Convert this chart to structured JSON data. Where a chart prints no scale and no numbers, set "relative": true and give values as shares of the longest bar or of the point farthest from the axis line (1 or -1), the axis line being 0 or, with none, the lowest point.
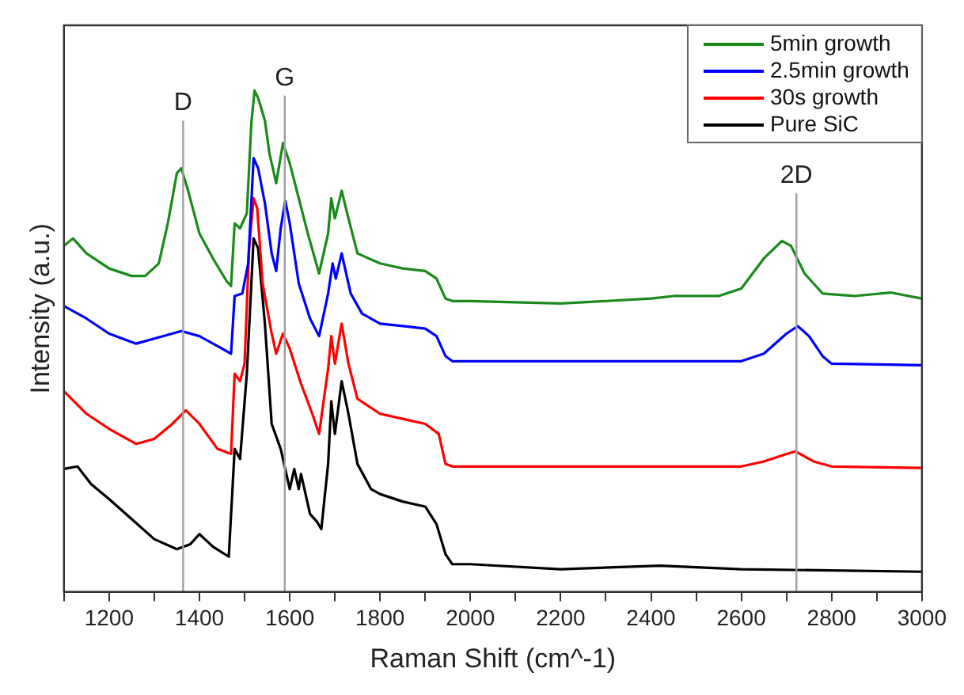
{
  "chart_data": {
    "type": "line",
    "xlabel": "Raman Shift (cm^-1)",
    "ylabel": "Intensity (a.u.)",
    "relative": true,
    "xlim": [
      1100,
      3000
    ],
    "xticks": [
      {
        "value": 1100,
        "label": null
      },
      1200,
      {
        "value": 1300,
        "label": null
      },
      1400,
      {
        "value": 1500,
        "label": null
      },
      1600,
      {
        "value": 1700,
        "label": null
      },
      1800,
      {
        "value": 1900,
        "label": null
      },
      2000,
      {
        "value": 2100,
        "label": null
      },
      2200,
      {
        "value": 2300,
        "label": null
      },
      2400,
      {
        "value": 2500,
        "label": null
      },
      2600,
      {
        "value": 2700,
        "label": null
      },
      2800,
      {
        "value": 2900,
        "label": null
      },
      3000
    ],
    "grid": false,
    "legend": "top right",
    "marker": "none",
    "line_style": "solid",
    "ref_lines": [
      {
        "axis": "x",
        "value": 1364,
        "label": "D",
        "color": "#a0a0a0"
      },
      {
        "axis": "x",
        "value": 1589,
        "label": "G",
        "color": "#a0a0a0"
      },
      {
        "axis": "x",
        "value": 2722,
        "label": "2D",
        "color": "#a0a0a0"
      }
    ],
    "series": [
      {
        "name": "5min growth",
        "color": "#1a8a1a",
        "x": [
          1100,
          1120,
          1150,
          1200,
          1250,
          1280,
          1310,
          1330,
          1350,
          1360,
          1375,
          1400,
          1430,
          1460,
          1470,
          1478,
          1490,
          1505,
          1515,
          1522,
          1530,
          1545,
          1555,
          1570,
          1585,
          1600,
          1620,
          1640,
          1665,
          1685,
          1692,
          1700,
          1715,
          1730,
          1750,
          1800,
          1850,
          1900,
          1925,
          1945,
          1960,
          2000,
          2200,
          2400,
          2450,
          2550,
          2600,
          2650,
          2690,
          2710,
          2740,
          2780,
          2850,
          2930,
          3000
        ],
        "values": [
          0.69,
          0.705,
          0.675,
          0.645,
          0.63,
          0.63,
          0.655,
          0.735,
          0.835,
          0.845,
          0.8,
          0.715,
          0.665,
          0.62,
          0.61,
          0.735,
          0.725,
          0.755,
          0.935,
          1.0,
          0.985,
          0.94,
          0.875,
          0.815,
          0.895,
          0.855,
          0.785,
          0.715,
          0.635,
          0.715,
          0.785,
          0.745,
          0.8,
          0.745,
          0.675,
          0.655,
          0.645,
          0.64,
          0.625,
          0.585,
          0.58,
          0.58,
          0.575,
          0.585,
          0.59,
          0.59,
          0.605,
          0.665,
          0.7,
          0.69,
          0.635,
          0.595,
          0.59,
          0.597,
          0.585
        ]
      },
      {
        "name": "2.5min growth",
        "color": "#0000ff",
        "x": [
          1100,
          1150,
          1200,
          1260,
          1300,
          1360,
          1400,
          1450,
          1470,
          1478,
          1495,
          1508,
          1520,
          1530,
          1545,
          1560,
          1570,
          1580,
          1590,
          1600,
          1620,
          1645,
          1665,
          1685,
          1695,
          1702,
          1715,
          1735,
          1760,
          1800,
          1850,
          1900,
          1925,
          1945,
          1960,
          2000,
          2600,
          2650,
          2700,
          2725,
          2750,
          2780,
          2800,
          3000
        ],
        "values": [
          0.57,
          0.545,
          0.515,
          0.495,
          0.505,
          0.52,
          0.51,
          0.485,
          0.475,
          0.59,
          0.595,
          0.655,
          0.865,
          0.845,
          0.775,
          0.675,
          0.64,
          0.725,
          0.78,
          0.735,
          0.615,
          0.545,
          0.51,
          0.595,
          0.655,
          0.625,
          0.675,
          0.595,
          0.555,
          0.535,
          0.53,
          0.525,
          0.51,
          0.47,
          0.46,
          0.46,
          0.46,
          0.475,
          0.515,
          0.53,
          0.51,
          0.47,
          0.455,
          0.452
        ]
      },
      {
        "name": "30s growth",
        "color": "#ff0000",
        "x": [
          1100,
          1150,
          1200,
          1260,
          1300,
          1340,
          1370,
          1400,
          1440,
          1470,
          1478,
          1490,
          1500,
          1510,
          1520,
          1528,
          1540,
          1560,
          1570,
          1585,
          1600,
          1625,
          1650,
          1665,
          1685,
          1692,
          1700,
          1715,
          1730,
          1750,
          1800,
          1850,
          1900,
          1930,
          1945,
          1960,
          2600,
          2650,
          2700,
          2720,
          2760,
          2800,
          3000
        ],
        "values": [
          0.4,
          0.355,
          0.325,
          0.295,
          0.305,
          0.335,
          0.362,
          0.335,
          0.285,
          0.275,
          0.435,
          0.42,
          0.455,
          0.685,
          0.785,
          0.765,
          0.615,
          0.515,
          0.475,
          0.515,
          0.485,
          0.415,
          0.355,
          0.315,
          0.445,
          0.51,
          0.455,
          0.535,
          0.455,
          0.385,
          0.355,
          0.345,
          0.335,
          0.315,
          0.255,
          0.25,
          0.25,
          0.26,
          0.275,
          0.28,
          0.26,
          0.25,
          0.247
        ]
      },
      {
        "name": "Pure SiC",
        "color": "#000000",
        "x": [
          1100,
          1130,
          1160,
          1200,
          1250,
          1300,
          1350,
          1380,
          1400,
          1430,
          1465,
          1478,
          1490,
          1505,
          1520,
          1530,
          1545,
          1560,
          1580,
          1600,
          1610,
          1620,
          1625,
          1645,
          1660,
          1670,
          1685,
          1692,
          1700,
          1715,
          1730,
          1750,
          1780,
          1800,
          1850,
          1900,
          1925,
          1945,
          1960,
          2000,
          2200,
          2420,
          2600,
          3000
        ],
        "values": [
          0.245,
          0.25,
          0.215,
          0.185,
          0.145,
          0.105,
          0.085,
          0.095,
          0.115,
          0.09,
          0.07,
          0.285,
          0.265,
          0.435,
          0.705,
          0.685,
          0.535,
          0.335,
          0.285,
          0.205,
          0.245,
          0.205,
          0.235,
          0.155,
          0.14,
          0.125,
          0.255,
          0.38,
          0.315,
          0.42,
          0.355,
          0.255,
          0.205,
          0.195,
          0.18,
          0.17,
          0.135,
          0.075,
          0.055,
          0.055,
          0.045,
          0.052,
          0.045,
          0.04
        ]
      }
    ]
  }
}
